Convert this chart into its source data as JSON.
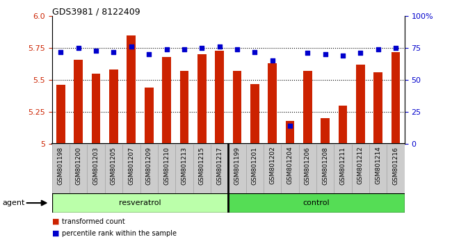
{
  "title": "GDS3981 / 8122409",
  "categories": [
    "GSM801198",
    "GSM801200",
    "GSM801203",
    "GSM801205",
    "GSM801207",
    "GSM801209",
    "GSM801210",
    "GSM801213",
    "GSM801215",
    "GSM801217",
    "GSM801199",
    "GSM801201",
    "GSM801202",
    "GSM801204",
    "GSM801206",
    "GSM801208",
    "GSM801211",
    "GSM801212",
    "GSM801214",
    "GSM801216"
  ],
  "bar_values": [
    5.46,
    5.66,
    5.55,
    5.58,
    5.85,
    5.44,
    5.68,
    5.57,
    5.7,
    5.73,
    5.57,
    5.47,
    5.63,
    5.18,
    5.57,
    5.2,
    5.3,
    5.62,
    5.56,
    5.72
  ],
  "percentile_values": [
    72,
    75,
    73,
    72,
    76,
    70,
    74,
    74,
    75,
    76,
    74,
    72,
    65,
    14,
    71,
    70,
    69,
    71,
    74,
    75
  ],
  "resveratrol_count": 10,
  "control_count": 10,
  "bar_color": "#cc2200",
  "dot_color": "#0000cc",
  "ylim_left": [
    5.0,
    6.0
  ],
  "ylim_right": [
    0,
    100
  ],
  "yticks_left": [
    5.0,
    5.25,
    5.5,
    5.75,
    6.0
  ],
  "yticks_right": [
    0,
    25,
    50,
    75,
    100
  ],
  "grid_lines": [
    5.25,
    5.5,
    5.75
  ],
  "resveratrol_color": "#bbffaa",
  "control_color": "#55dd55",
  "agent_label": "agent",
  "resveratrol_label": "resveratrol",
  "control_label": "control",
  "legend_bar_label": "transformed count",
  "legend_dot_label": "percentile rank within the sample",
  "col_bg_color": "#cccccc",
  "plot_bg_color": "#ffffff"
}
